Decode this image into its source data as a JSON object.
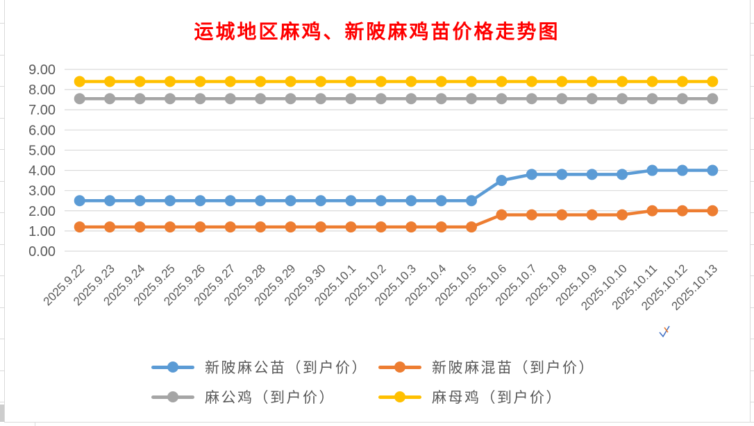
{
  "title": {
    "text": "运城地区麻鸡、新陂麻鸡苗价格走势图",
    "color": "#FF0000"
  },
  "chart_data": {
    "type": "line",
    "title": "运城地区麻鸡、新陂麻鸡苗价格走势图",
    "categories": [
      "2025.9.22",
      "2025.9.23",
      "2025.9.24",
      "2025.9.25",
      "2025.9.26",
      "2025.9.27",
      "2025.9.28",
      "2025.9.29",
      "2025.9.30",
      "2025.10.1",
      "2025.10.2",
      "2025.10.3",
      "2025.10.4",
      "2025.10.5",
      "2025.10.6",
      "2025.10.7",
      "2025.10.8",
      "2025.10.9",
      "2025.10.10",
      "2025.10.11",
      "2025.10.12",
      "2025.10.13"
    ],
    "series": [
      {
        "name": "新陂麻公苗（到户价）",
        "color": "#5B9BD5",
        "values": [
          2.5,
          2.5,
          2.5,
          2.5,
          2.5,
          2.5,
          2.5,
          2.5,
          2.5,
          2.5,
          2.5,
          2.5,
          2.5,
          2.5,
          3.5,
          3.8,
          3.8,
          3.8,
          3.8,
          4.0,
          4.0,
          4.0
        ]
      },
      {
        "name": "新陂麻混苗（到户价）",
        "color": "#ED7D31",
        "values": [
          1.2,
          1.2,
          1.2,
          1.2,
          1.2,
          1.2,
          1.2,
          1.2,
          1.2,
          1.2,
          1.2,
          1.2,
          1.2,
          1.2,
          1.8,
          1.8,
          1.8,
          1.8,
          1.8,
          2.0,
          2.0,
          2.0
        ]
      },
      {
        "name": "麻公鸡（到户价）",
        "color": "#A5A5A5",
        "values": [
          7.55,
          7.55,
          7.55,
          7.55,
          7.55,
          7.55,
          7.55,
          7.55,
          7.55,
          7.55,
          7.55,
          7.55,
          7.55,
          7.55,
          7.55,
          7.55,
          7.55,
          7.55,
          7.55,
          7.55,
          7.55,
          7.55
        ]
      },
      {
        "name": "麻母鸡（到户价）",
        "color": "#FFC000",
        "values": [
          8.4,
          8.4,
          8.4,
          8.4,
          8.4,
          8.4,
          8.4,
          8.4,
          8.4,
          8.4,
          8.4,
          8.4,
          8.4,
          8.4,
          8.4,
          8.4,
          8.4,
          8.4,
          8.4,
          8.4,
          8.4,
          8.4
        ]
      }
    ],
    "ylim": [
      0,
      9
    ],
    "ytick_labels": [
      "0.00",
      "1.00",
      "2.00",
      "3.00",
      "4.00",
      "5.00",
      "6.00",
      "7.00",
      "8.00",
      "9.00"
    ],
    "grid": true,
    "grid_color": "#D9D9D9",
    "axis_text_color": "#595959",
    "legend_position": "bottom",
    "xlabel": "",
    "ylabel": ""
  }
}
